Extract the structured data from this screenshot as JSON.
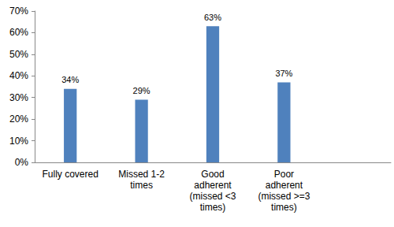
{
  "chart_data": {
    "type": "bar",
    "categories": [
      "Fully covered",
      "Missed 1-2\ntimes",
      "Good\nadherent\n(missed <3\ntimes)",
      "Poor\nadherent\n(missed >=3\ntimes)",
      null
    ],
    "values": [
      34,
      29,
      63,
      37,
      null
    ],
    "value_labels": [
      "34%",
      "29%",
      "63%",
      "37%",
      null
    ],
    "color": "#4f81bd",
    "ylim": [
      0,
      70
    ],
    "yticks": [
      {
        "value": 0,
        "label": "0%"
      },
      {
        "value": 10,
        "label": "10%"
      },
      {
        "value": 20,
        "label": "20%"
      },
      {
        "value": 30,
        "label": "30%"
      },
      {
        "value": 40,
        "label": "40%"
      },
      {
        "value": 50,
        "label": "50%"
      },
      {
        "value": 60,
        "label": "60%"
      },
      {
        "value": 70,
        "label": "70%"
      }
    ],
    "grid": false,
    "data_labels": true
  }
}
